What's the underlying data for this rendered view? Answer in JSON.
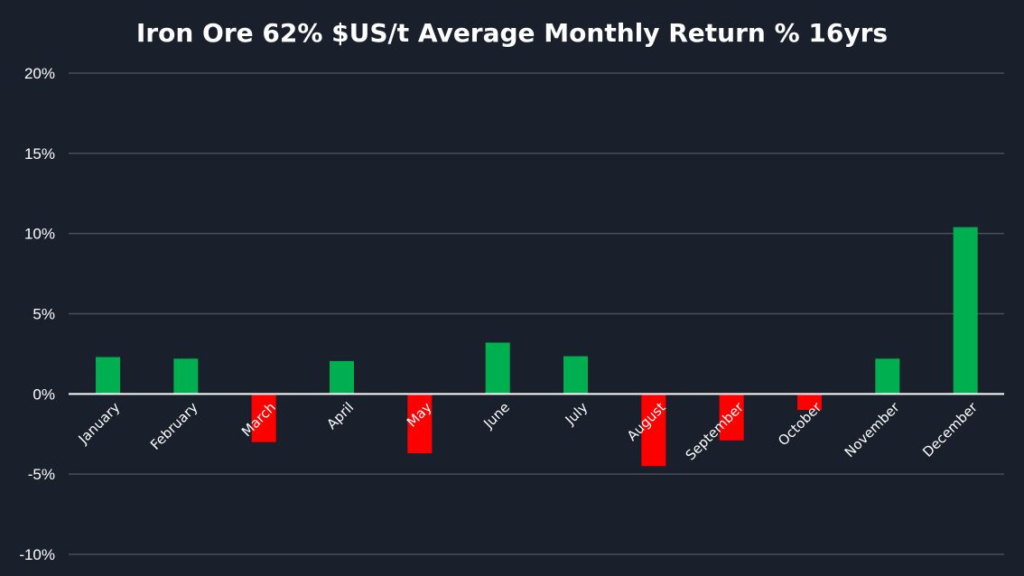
{
  "chart_data": {
    "type": "bar",
    "title": "Iron Ore 62% $US/t Average Monthly Return % 16yrs",
    "xlabel": "",
    "ylabel": "",
    "categories": [
      "January",
      "February",
      "March",
      "April",
      "May",
      "June",
      "July",
      "August",
      "September",
      "October",
      "November",
      "December"
    ],
    "values": [
      2.3,
      2.2,
      -3.0,
      2.05,
      -3.7,
      3.2,
      2.35,
      -4.5,
      -2.9,
      -1.0,
      2.2,
      10.4
    ],
    "ylim": [
      -10,
      20
    ],
    "yticks": [
      20,
      15,
      10,
      5,
      0,
      -5,
      -10
    ],
    "ytick_labels": [
      "20%",
      "15%",
      "10%",
      "5%",
      "0%",
      "-5%",
      "-10%"
    ],
    "grid": true,
    "legend": "none",
    "colors": {
      "background": "#1a1f2c",
      "positive": "#00b050",
      "negative": "#ff0000",
      "gridline": "#4a4f5a",
      "zero_line": "#ffffff",
      "text": "#ffffff"
    }
  }
}
